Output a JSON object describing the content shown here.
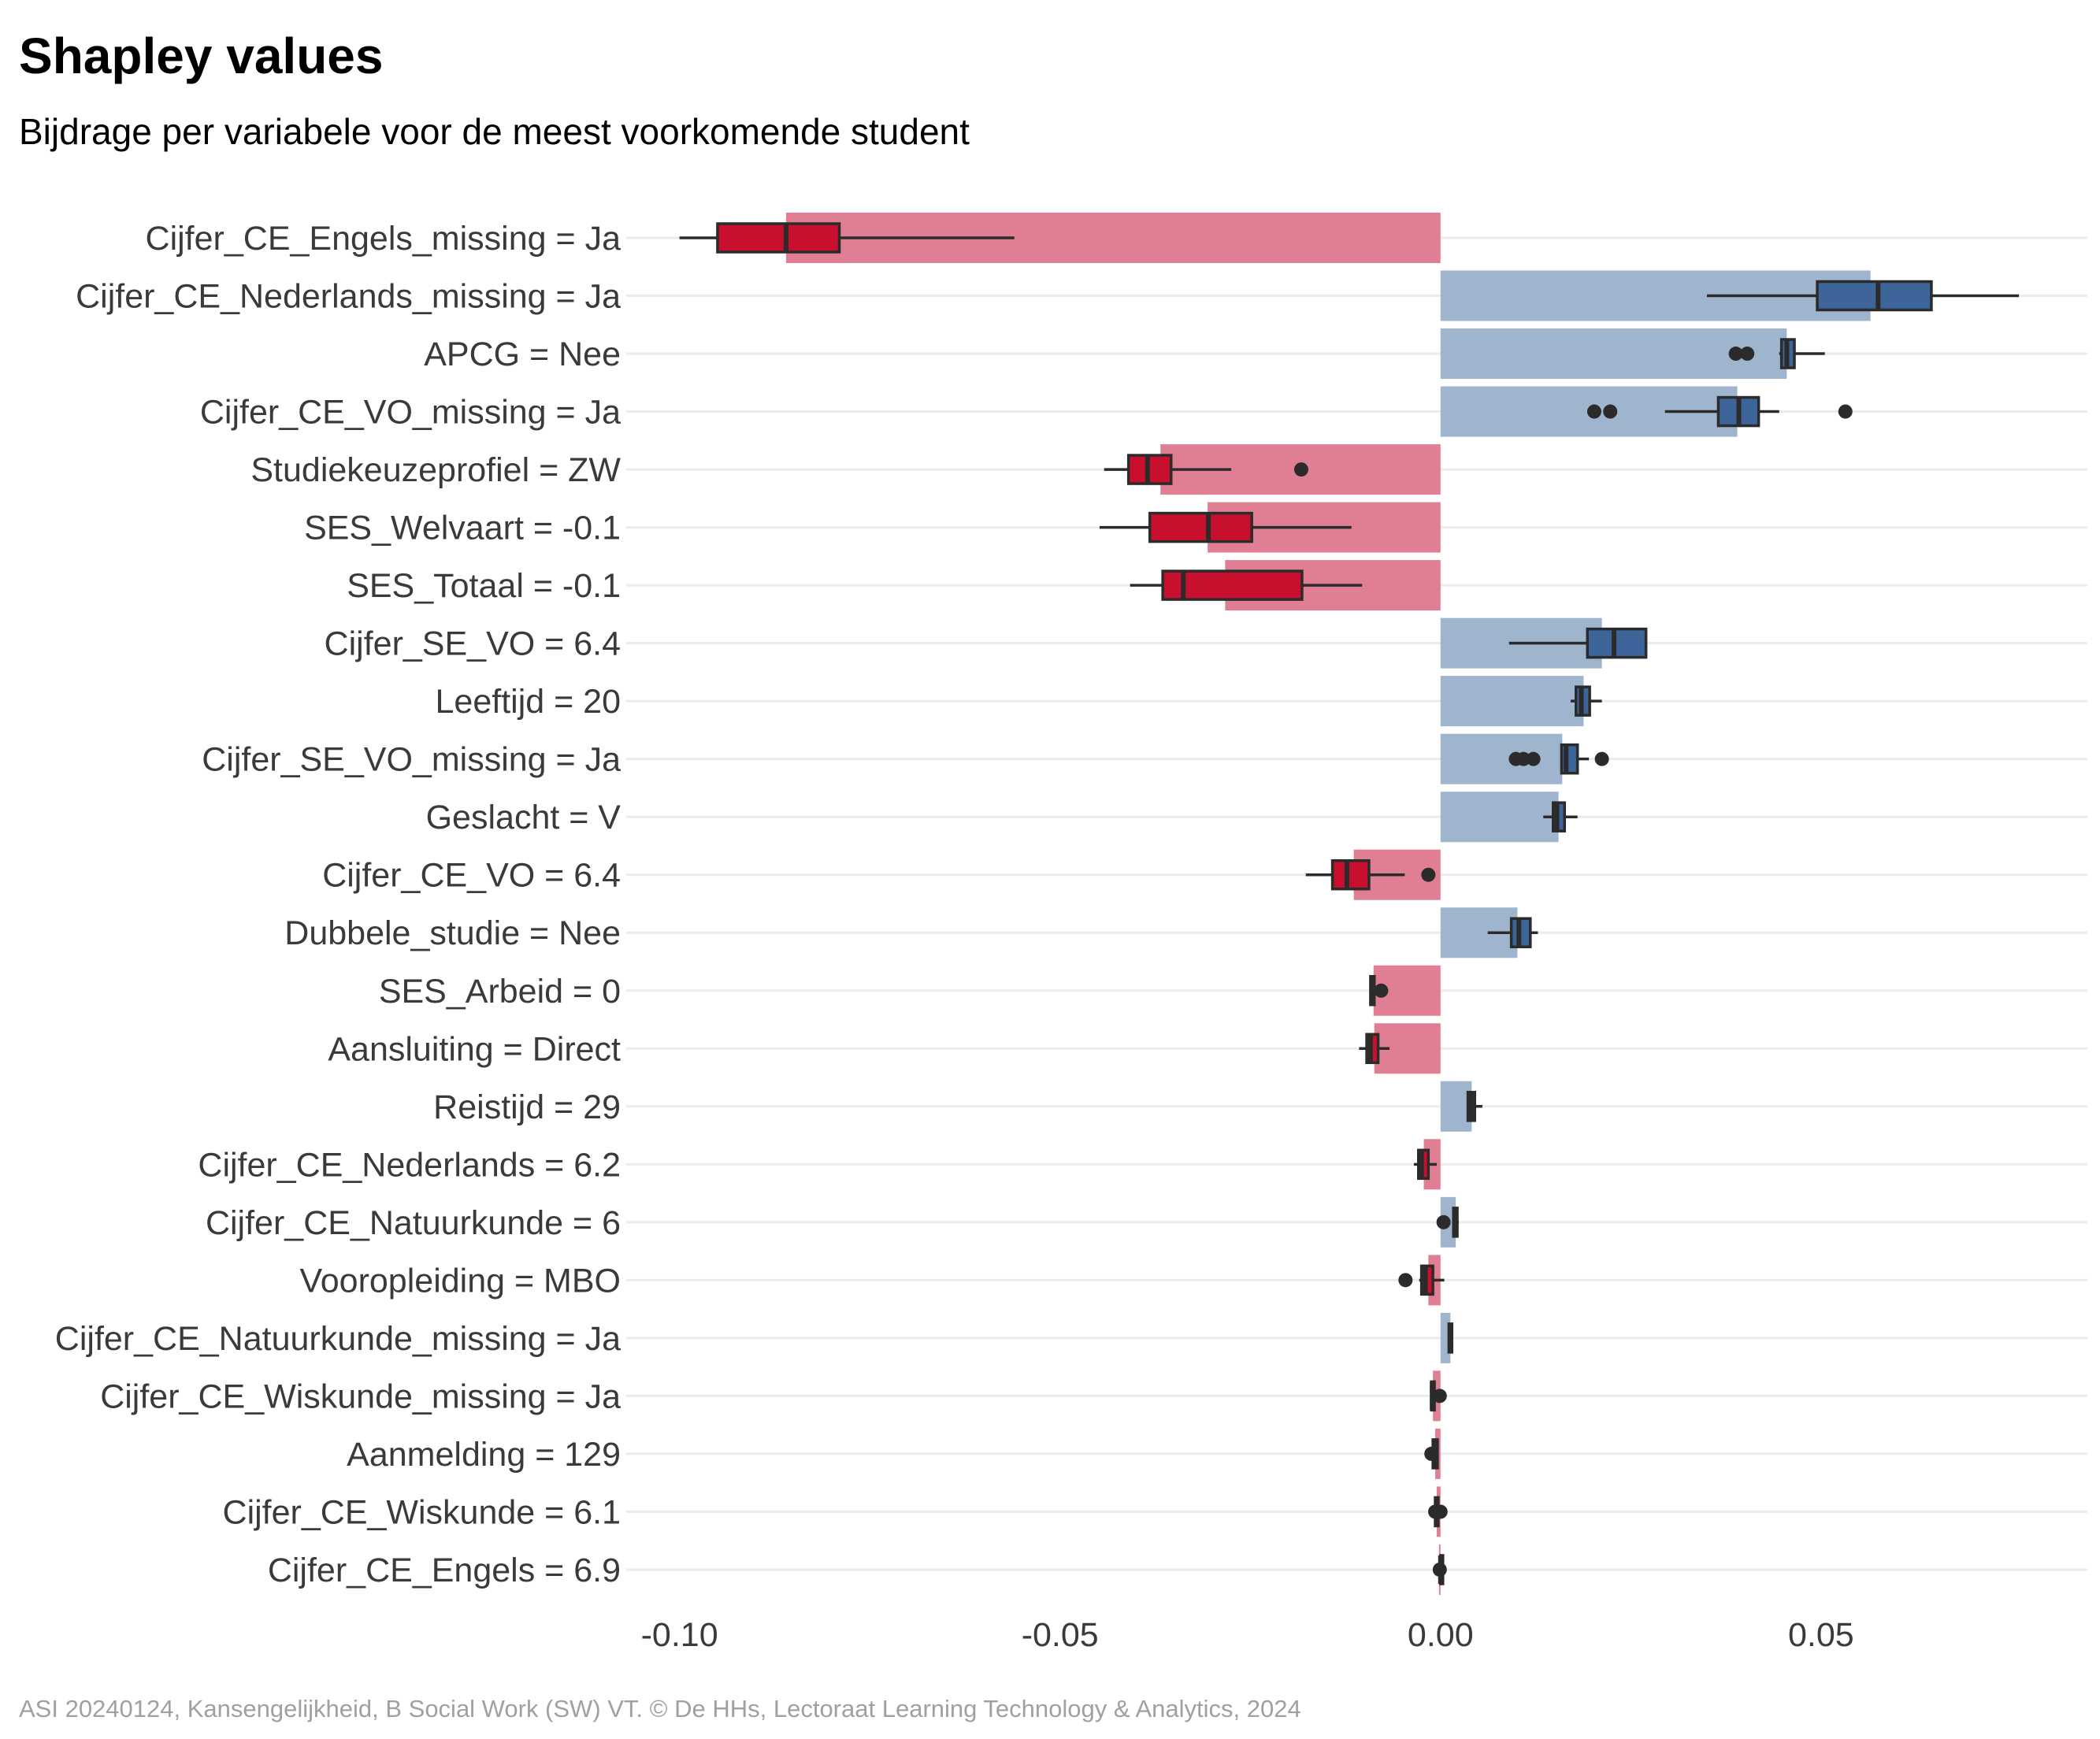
{
  "title": "Shapley values",
  "subtitle": "Bijdrage per variabele voor de meest voorkomende student",
  "caption": "ASI 20240124, Kansengelijkheid, B Social Work (SW) VT. © De HHs, Lectoraat Learning Technology & Analytics, 2024",
  "colors": {
    "negative_bar": "#e07f94",
    "negative_box": "#c8102e",
    "positive_bar": "#9fb4cd",
    "positive_box": "#3d6599",
    "whisker": "#2b2b2b",
    "gridline": "#ebebeb"
  },
  "chart_data": {
    "type": "bar",
    "orientation": "horizontal",
    "title": "Shapley values",
    "subtitle": "Bijdrage per variabele voor de meest voorkomende student",
    "xlabel": "",
    "ylabel": "",
    "xlim": [
      -0.107,
      0.085
    ],
    "xticks": [
      -0.1,
      -0.05,
      0.0,
      0.05
    ],
    "xtick_labels": [
      "-0.10",
      "-0.05",
      "0.00",
      "0.05"
    ],
    "grid": "horizontal",
    "legend": "none",
    "categories": [
      "Cijfer_CE_Engels_missing = Ja",
      "Cijfer_CE_Nederlands_missing = Ja",
      "APCG = Nee",
      "Cijfer_CE_VO_missing = Ja",
      "Studiekeuzeprofiel = ZW",
      "SES_Welvaart = -0.1",
      "SES_Totaal = -0.1",
      "Cijfer_SE_VO = 6.4",
      "Leeftijd = 20",
      "Cijfer_SE_VO_missing = Ja",
      "Geslacht = V",
      "Cijfer_CE_VO = 6.4",
      "Dubbele_studie = Nee",
      "SES_Arbeid = 0",
      "Aansluiting = Direct",
      "Reistijd = 29",
      "Cijfer_CE_Nederlands = 6.2",
      "Cijfer_CE_Natuurkunde = 6",
      "Vooropleiding = MBO",
      "Cijfer_CE_Natuurkunde_missing = Ja",
      "Cijfer_CE_Wiskunde_missing = Ja",
      "Aanmelding = 129",
      "Cijfer_CE_Wiskunde = 6.1",
      "Cijfer_CE_Engels = 6.9"
    ],
    "values": [
      -0.086,
      0.0565,
      0.0455,
      0.039,
      -0.0368,
      -0.0306,
      -0.0283,
      0.0212,
      0.0188,
      0.016,
      0.0155,
      -0.0114,
      0.0101,
      -0.0088,
      -0.0087,
      0.0041,
      -0.0022,
      0.002,
      -0.0016,
      0.0013,
      -0.001,
      -0.0007,
      -0.0005,
      -0.0002
    ],
    "boxplots": [
      {
        "min": -0.1,
        "q1": -0.095,
        "median": -0.086,
        "q3": -0.079,
        "max": -0.056,
        "outliers": []
      },
      {
        "min": 0.035,
        "q1": 0.0495,
        "median": 0.0575,
        "q3": 0.0645,
        "max": 0.076,
        "outliers": []
      },
      {
        "min": 0.0445,
        "q1": 0.0448,
        "median": 0.0455,
        "q3": 0.0465,
        "max": 0.0505,
        "outliers": [
          0.0388,
          0.0403
        ]
      },
      {
        "min": 0.0295,
        "q1": 0.0365,
        "median": 0.0392,
        "q3": 0.0418,
        "max": 0.0445,
        "outliers": [
          0.0202,
          0.0223,
          0.0532
        ]
      },
      {
        "min": -0.0442,
        "q1": -0.041,
        "median": -0.0385,
        "q3": -0.0354,
        "max": -0.0275,
        "outliers": [
          -0.0183
        ]
      },
      {
        "min": -0.0448,
        "q1": -0.0382,
        "median": -0.0305,
        "q3": -0.0248,
        "max": -0.0117,
        "outliers": []
      },
      {
        "min": -0.0408,
        "q1": -0.0365,
        "median": -0.0338,
        "q3": -0.0182,
        "max": -0.0103,
        "outliers": []
      },
      {
        "min": 0.009,
        "q1": 0.0193,
        "median": 0.0228,
        "q3": 0.027,
        "max": 0.027,
        "outliers": []
      },
      {
        "min": 0.0171,
        "q1": 0.0178,
        "median": 0.0185,
        "q3": 0.0196,
        "max": 0.0212,
        "outliers": []
      },
      {
        "min": 0.0159,
        "q1": 0.0159,
        "median": 0.0165,
        "q3": 0.018,
        "max": 0.0195,
        "outliers": [
          0.0099,
          0.0109,
          0.0122,
          0.0212
        ]
      },
      {
        "min": 0.0135,
        "q1": 0.0148,
        "median": 0.0153,
        "q3": 0.0163,
        "max": 0.018,
        "outliers": []
      },
      {
        "min": -0.0177,
        "q1": -0.0142,
        "median": -0.0123,
        "q3": -0.0094,
        "max": -0.0047,
        "outliers": [
          -0.0016
        ]
      },
      {
        "min": 0.0062,
        "q1": 0.0093,
        "median": 0.0103,
        "q3": 0.0118,
        "max": 0.0128,
        "outliers": []
      },
      {
        "min": -0.0093,
        "q1": -0.0092,
        "median": -0.009,
        "q3": -0.0087,
        "max": -0.0085,
        "outliers": [
          -0.0078
        ]
      },
      {
        "min": -0.0107,
        "q1": -0.0097,
        "median": -0.0092,
        "q3": -0.0082,
        "max": -0.0067,
        "outliers": []
      },
      {
        "min": 0.0035,
        "q1": 0.0036,
        "median": 0.004,
        "q3": 0.0045,
        "max": 0.0055,
        "outliers": []
      },
      {
        "min": -0.0035,
        "q1": -0.0029,
        "median": -0.0025,
        "q3": -0.0016,
        "max": -0.0005,
        "outliers": []
      },
      {
        "min": 0.0017,
        "q1": 0.0017,
        "median": 0.002,
        "q3": 0.0022,
        "max": 0.0024,
        "outliers": [
          0.0004
        ]
      },
      {
        "min": -0.0028,
        "q1": -0.0025,
        "median": -0.002,
        "q3": -0.001,
        "max": 0.0005,
        "outliers": [
          -0.0046
        ]
      },
      {
        "min": 0.0011,
        "q1": 0.0011,
        "median": 0.0013,
        "q3": 0.0015,
        "max": 0.0016,
        "outliers": []
      },
      {
        "min": -0.0012,
        "q1": -0.0012,
        "median": -0.0011,
        "q3": -0.0008,
        "max": -0.0005,
        "outliers": [
          -0.0001
        ]
      },
      {
        "min": -0.001,
        "q1": -0.001,
        "median": -0.0007,
        "q3": -0.0004,
        "max": -0.0003,
        "outliers": [
          -0.0012
        ]
      },
      {
        "min": -0.0007,
        "q1": -0.0007,
        "median": -0.0005,
        "q3": -0.0003,
        "max": -0.0002,
        "outliers": [
          -0.0007,
          0.0
        ]
      },
      {
        "min": 0.0,
        "q1": 0.0,
        "median": 0.0,
        "q3": 0.0001,
        "max": 0.0001,
        "outliers": [
          -0.0001
        ]
      }
    ]
  }
}
